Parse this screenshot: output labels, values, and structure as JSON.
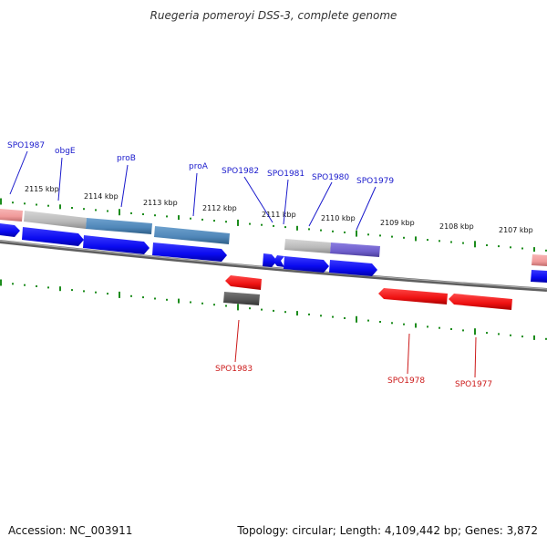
{
  "title": "Ruegeria pomeroyi DSS-3, complete genome",
  "footer": {
    "accession": "Accession: NC_003911",
    "topology": "Topology: circular; Length: 4,109,442 bp; Genes: 3,872"
  },
  "colors": {
    "forward_cds": "#0a0af0",
    "reverse_cds": "#ee1111",
    "backbone": "#7a7a7a",
    "tick": "#1c8c1c",
    "label_top": "#1a1acc",
    "label_bottom": "#cc1a1a",
    "feature_gray": "#b9b9b9",
    "feature_steel": "#4f86b8",
    "feature_purple": "#6f5fcc",
    "feature_pink": "#f09a9a",
    "feature_dark": "#555555"
  },
  "scale_labels": [
    "2115 kbp",
    "2114 kbp",
    "2113 kbp",
    "2112 kbp",
    "2111 kbp",
    "2110 kbp",
    "2109 kbp",
    "2108 kbp",
    "2107 kbp"
  ],
  "top_genes": [
    "SPO1987",
    "obgE",
    "proB",
    "proA",
    "SPO1982",
    "SPO1981",
    "SPO1980",
    "SPO1979"
  ],
  "bottom_genes": [
    "SPO1983",
    "SPO1978",
    "SPO1977"
  ]
}
